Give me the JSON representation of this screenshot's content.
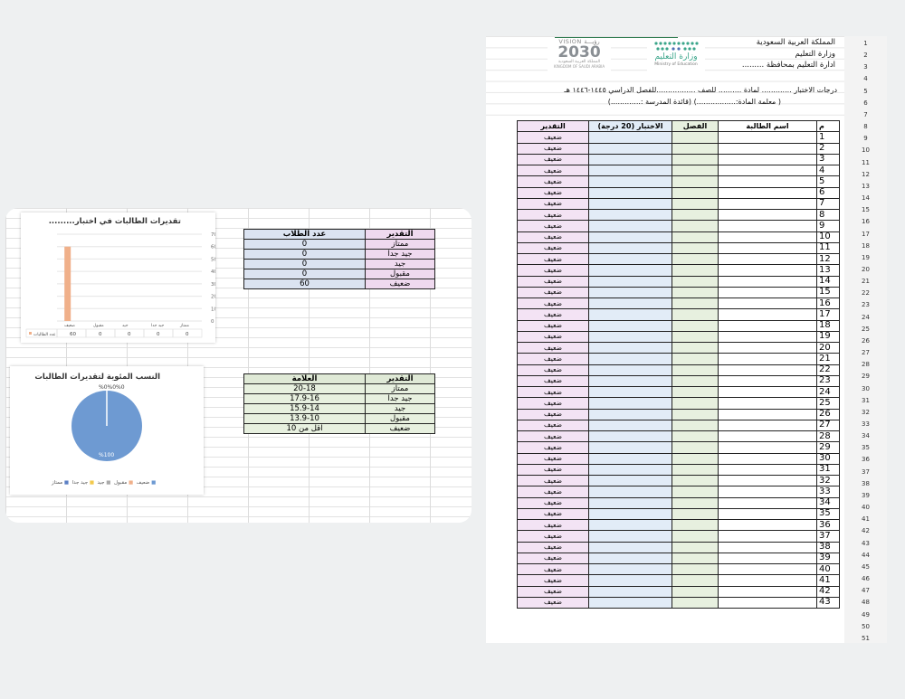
{
  "left": {
    "chart1": {
      "title": "تقديرات الطالبات في اختبار.........",
      "y_ticks": [
        "70",
        "60",
        "50",
        "40",
        "30",
        "20",
        "10",
        "0"
      ],
      "categories": [
        "ضعيف",
        "مقبول",
        "جيد",
        "جيد جدا",
        "ممتاز"
      ],
      "series_name": "عدد الطالبات",
      "values": [
        "60",
        "0",
        "0",
        "0",
        "0"
      ]
    },
    "table1": {
      "headers": [
        "التقدير",
        "عدد الطلاب"
      ],
      "rows": [
        [
          "ممتاز",
          "0"
        ],
        [
          "جيد جدا",
          "0"
        ],
        [
          "جيد",
          "0"
        ],
        [
          "مقبول",
          "0"
        ],
        [
          "ضعيف",
          "60"
        ]
      ]
    },
    "chart2": {
      "title": "النسب المئوية لتقديرات الطالبات",
      "top_label": "%0%0%0",
      "slice_label": "%100",
      "legend": [
        "ضعيف",
        "مقبول",
        "جيد",
        "جيد جدا",
        "ممتاز"
      ]
    },
    "table2": {
      "headers": [
        "التقدير",
        "العلامة"
      ],
      "rows": [
        [
          "ممتاز",
          "20-18"
        ],
        [
          "جيد جدا",
          "17.9-16"
        ],
        [
          "جيد",
          "15.9-14"
        ],
        [
          "مقبول",
          "13.9-10"
        ],
        [
          "ضعيف",
          "اقل من 10"
        ]
      ]
    }
  },
  "right": {
    "logos": {
      "vision_top": "VISION رؤيـــة",
      "vision_num": "2030",
      "vision_sub": "المملكة العربية السعودية",
      "vision_sub2": "KINGDOM OF SAUDI ARABIA",
      "moe_ar": "وزارة التعليم",
      "moe_en": "Ministry of Education"
    },
    "header_lines": [
      "المملكة العربية السعودية",
      "وزارة التعليم",
      "ادارة التعليم بمحافظة .........",
      "درجات الاختبار ............. لمادة .......... للصف .................للفصل الدراسي ١٤٤٥-١٤٤٦ هـ",
      "( معلمة المادة:.................) (قائدة المدرسة :.............)"
    ],
    "table_headers": {
      "num": "م",
      "name": "اسم الطالبة",
      "class": "الفصل",
      "test": "الاختبار (20 درجة)",
      "grade": "التقدير"
    },
    "grade_value": "ضعيف",
    "row_count": 43,
    "sheet_row_start": 1,
    "sheet_row_end": 51
  },
  "colors": {
    "bar": "#f0b08a",
    "pie": "#6e9ad2",
    "grade_col": "#f3e3f4",
    "test_col": "#e2ecf7",
    "class_col": "#e7f0df",
    "header_blue": "#dbe3f1",
    "header_pink": "#efd9ef",
    "header_green": "#dfe9d6",
    "moe_green": "#3aa58a"
  }
}
